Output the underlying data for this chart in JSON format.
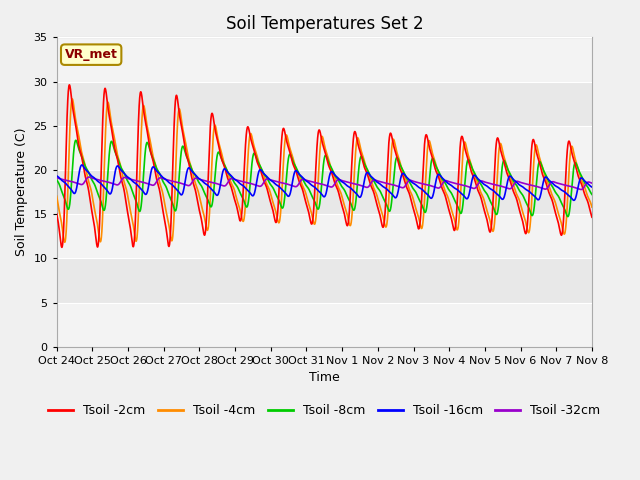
{
  "title": "Soil Temperatures Set 2",
  "xlabel": "Time",
  "ylabel": "Soil Temperature (C)",
  "ylim": [
    0,
    35
  ],
  "yticks": [
    0,
    5,
    10,
    15,
    20,
    25,
    30,
    35
  ],
  "xtick_labels": [
    "Oct 24",
    "Oct 25",
    "Oct 26",
    "Oct 27",
    "Oct 28",
    "Oct 29",
    "Oct 30",
    "Oct 31",
    "Nov 1",
    "Nov 2",
    "Nov 3",
    "Nov 4",
    "Nov 5",
    "Nov 6",
    "Nov 7",
    "Nov 8"
  ],
  "xtick_positions": [
    0,
    1,
    2,
    3,
    4,
    5,
    6,
    7,
    8,
    9,
    10,
    11,
    12,
    13,
    14,
    15
  ],
  "colors": {
    "Tsoil -2cm": "#ff0000",
    "Tsoil -4cm": "#ff8c00",
    "Tsoil -8cm": "#00cc00",
    "Tsoil -16cm": "#0000ff",
    "Tsoil -32cm": "#9900cc"
  },
  "legend_labels": [
    "Tsoil -2cm",
    "Tsoil -4cm",
    "Tsoil -8cm",
    "Tsoil -16cm",
    "Tsoil -32cm"
  ],
  "vr_met_label": "VR_met",
  "fig_bg_color": "#f0f0f0",
  "plot_bg_color": "#e8e8e8",
  "grid_color": "#ffffff",
  "title_fontsize": 12,
  "axis_label_fontsize": 9,
  "tick_fontsize": 8,
  "legend_fontsize": 9,
  "linewidth": 1.2,
  "n_points_per_day": 200
}
